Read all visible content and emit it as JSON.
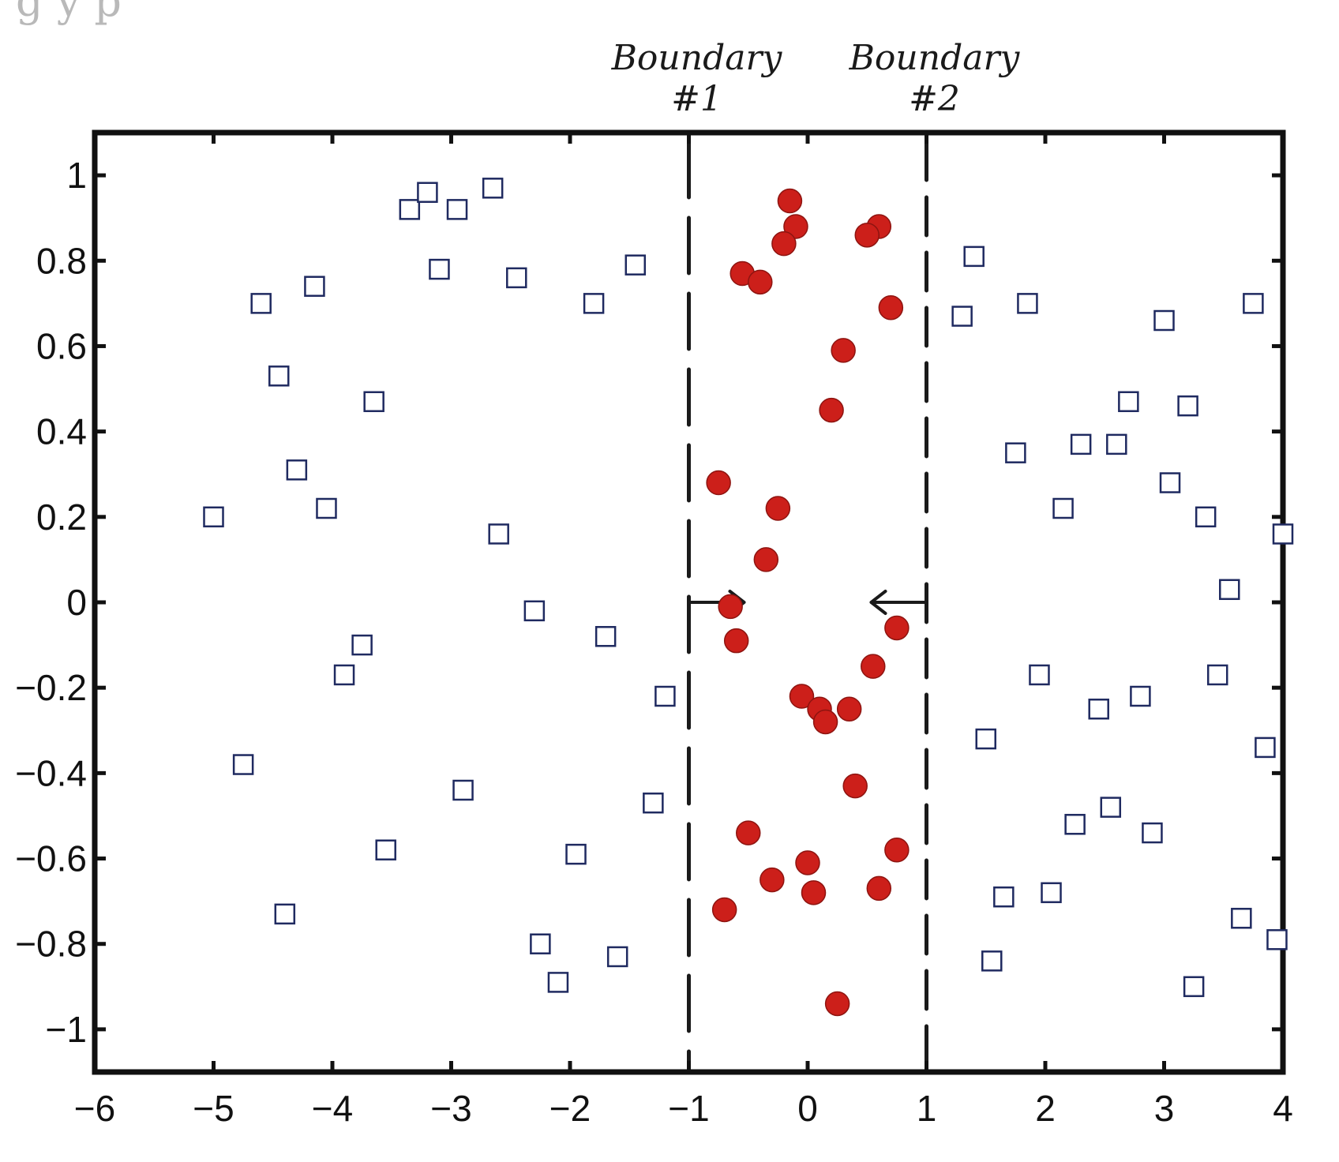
{
  "page": {
    "top_fragment": "g                    y              p                            "
  },
  "chart_data": {
    "type": "scatter",
    "title": "",
    "xlabel": "",
    "ylabel": "",
    "xlim": [
      -6,
      4
    ],
    "ylim": [
      -1.1,
      1.1
    ],
    "xticks": [
      -6,
      -5,
      -4,
      -3,
      -2,
      -1,
      0,
      1,
      2,
      3,
      4
    ],
    "xtick_labels": [
      "−6",
      "−5",
      "−4",
      "−3",
      "−2",
      "−1",
      "0",
      "1",
      "2",
      "3",
      "4"
    ],
    "yticks": [
      1,
      0.8,
      0.6,
      0.4,
      0.2,
      0,
      -0.2,
      -0.4,
      -0.6,
      -0.8,
      -1
    ],
    "ytick_labels": [
      "1",
      "0.8",
      "0.6",
      "0.4",
      "0.2",
      "0",
      "−0.2",
      "−0.4",
      "−0.6",
      "−0.8",
      "−1"
    ],
    "grid": false,
    "colors": {
      "squares": "#1f2a60",
      "circles": "#cc1f1a",
      "boundaries": "#1a1a1a"
    },
    "series": [
      {
        "marker": "square",
        "points": [
          [
            -3.35,
            0.92
          ],
          [
            -3.2,
            0.96
          ],
          [
            -2.95,
            0.92
          ],
          [
            -2.65,
            0.97
          ],
          [
            -3.1,
            0.78
          ],
          [
            -2.45,
            0.76
          ],
          [
            -4.6,
            0.7
          ],
          [
            -4.15,
            0.74
          ],
          [
            -1.8,
            0.7
          ],
          [
            -1.45,
            0.79
          ],
          [
            -4.45,
            0.53
          ],
          [
            -3.65,
            0.47
          ],
          [
            -4.3,
            0.31
          ],
          [
            -4.05,
            0.22
          ],
          [
            -5.0,
            0.2
          ],
          [
            -2.6,
            0.16
          ],
          [
            -2.3,
            -0.02
          ],
          [
            -1.7,
            -0.08
          ],
          [
            -3.75,
            -0.1
          ],
          [
            -3.9,
            -0.17
          ],
          [
            -1.2,
            -0.22
          ],
          [
            -4.75,
            -0.38
          ],
          [
            -2.9,
            -0.44
          ],
          [
            -1.3,
            -0.47
          ],
          [
            -3.55,
            -0.58
          ],
          [
            -1.95,
            -0.59
          ],
          [
            -4.4,
            -0.73
          ],
          [
            -2.25,
            -0.8
          ],
          [
            -1.6,
            -0.83
          ],
          [
            -2.1,
            -0.89
          ],
          [
            1.4,
            0.81
          ],
          [
            1.3,
            0.67
          ],
          [
            1.85,
            0.7
          ],
          [
            3.0,
            0.66
          ],
          [
            3.75,
            0.7
          ],
          [
            2.7,
            0.47
          ],
          [
            3.2,
            0.46
          ],
          [
            1.75,
            0.35
          ],
          [
            2.3,
            0.37
          ],
          [
            2.6,
            0.37
          ],
          [
            3.05,
            0.28
          ],
          [
            2.15,
            0.22
          ],
          [
            3.35,
            0.2
          ],
          [
            4.0,
            0.16
          ],
          [
            3.55,
            0.03
          ],
          [
            1.95,
            -0.17
          ],
          [
            3.45,
            -0.17
          ],
          [
            2.8,
            -0.22
          ],
          [
            2.45,
            -0.25
          ],
          [
            1.5,
            -0.32
          ],
          [
            3.85,
            -0.34
          ],
          [
            2.55,
            -0.48
          ],
          [
            2.25,
            -0.52
          ],
          [
            2.9,
            -0.54
          ],
          [
            1.65,
            -0.69
          ],
          [
            2.05,
            -0.68
          ],
          [
            3.65,
            -0.74
          ],
          [
            3.95,
            -0.79
          ],
          [
            1.55,
            -0.84
          ],
          [
            3.25,
            -0.9
          ]
        ]
      },
      {
        "marker": "circle",
        "points": [
          [
            -0.15,
            0.94
          ],
          [
            -0.1,
            0.88
          ],
          [
            -0.2,
            0.84
          ],
          [
            0.6,
            0.88
          ],
          [
            0.5,
            0.86
          ],
          [
            -0.55,
            0.77
          ],
          [
            -0.4,
            0.75
          ],
          [
            0.7,
            0.69
          ],
          [
            0.3,
            0.59
          ],
          [
            0.2,
            0.45
          ],
          [
            -0.75,
            0.28
          ],
          [
            -0.25,
            0.22
          ],
          [
            -0.35,
            0.1
          ],
          [
            -0.65,
            -0.01
          ],
          [
            -0.6,
            -0.09
          ],
          [
            0.75,
            -0.06
          ],
          [
            0.55,
            -0.15
          ],
          [
            -0.05,
            -0.22
          ],
          [
            0.1,
            -0.25
          ],
          [
            0.35,
            -0.25
          ],
          [
            0.15,
            -0.28
          ],
          [
            0.4,
            -0.43
          ],
          [
            -0.5,
            -0.54
          ],
          [
            0.75,
            -0.58
          ],
          [
            -0.3,
            -0.65
          ],
          [
            0.0,
            -0.61
          ],
          [
            0.05,
            -0.68
          ],
          [
            0.6,
            -0.67
          ],
          [
            -0.7,
            -0.72
          ],
          [
            0.25,
            -0.94
          ]
        ]
      }
    ],
    "annotations": [
      {
        "text": "Boundary #1",
        "x": -1,
        "kind": "vertical-dashed"
      },
      {
        "text": "Boundary #2",
        "x": 1,
        "kind": "vertical-dashed"
      }
    ]
  }
}
